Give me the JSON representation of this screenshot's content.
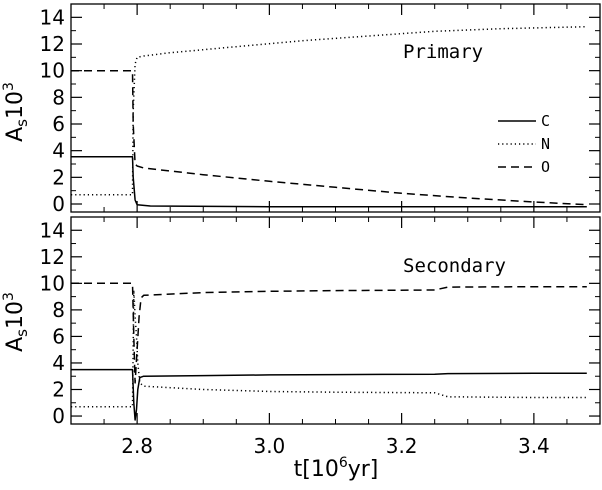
{
  "chart_data": [
    {
      "type": "line",
      "annotation": "Primary",
      "ylabel": "As10^3",
      "ylabel_main": "A",
      "ylabel_sub": "s",
      "ylabel_base": "10",
      "ylabel_sup": "3",
      "xlim": [
        2.7,
        3.5
      ],
      "ylim": [
        -0.6,
        15
      ],
      "yticks": [
        0,
        2,
        4,
        6,
        8,
        10,
        12,
        14
      ],
      "grid": false,
      "legend_position": "right-middle",
      "series": [
        {
          "name": "C",
          "style": "solid",
          "x": [
            2.7,
            2.793,
            2.794,
            2.797,
            2.8,
            2.82,
            3.0,
            3.3,
            3.48
          ],
          "y": [
            3.55,
            3.55,
            2.0,
            0.3,
            -0.05,
            -0.15,
            -0.2,
            -0.2,
            -0.2
          ]
        },
        {
          "name": "N",
          "style": "dotted",
          "x": [
            2.7,
            2.793,
            2.794,
            2.797,
            2.8,
            2.81,
            2.85,
            2.95,
            3.05,
            3.15,
            3.25,
            3.35,
            3.48
          ],
          "y": [
            0.7,
            0.7,
            7.0,
            10.5,
            11.0,
            11.1,
            11.35,
            11.8,
            12.25,
            12.6,
            12.95,
            13.15,
            13.3
          ]
        },
        {
          "name": "O",
          "style": "dashed",
          "x": [
            2.7,
            2.793,
            2.794,
            2.797,
            2.8,
            2.81,
            2.9,
            3.0,
            3.1,
            3.2,
            3.3,
            3.4,
            3.48
          ],
          "y": [
            10.0,
            10.0,
            6.0,
            3.0,
            2.85,
            2.7,
            2.2,
            1.7,
            1.25,
            0.8,
            0.45,
            0.15,
            -0.05
          ]
        }
      ]
    },
    {
      "type": "line",
      "annotation": "Secondary",
      "ylabel": "As10^3",
      "ylabel_main": "A",
      "ylabel_sub": "s",
      "ylabel_base": "10",
      "ylabel_sup": "3",
      "xlabel": "t[10^6yr]",
      "xlabel_pre": "t[10",
      "xlabel_sup": "6",
      "xlabel_post": "yr]",
      "xlim": [
        2.7,
        3.5
      ],
      "ylim": [
        -0.6,
        15
      ],
      "xticks": [
        2.8,
        3.0,
        3.2,
        3.4
      ],
      "xtick_labels": [
        "2.8",
        "3.0",
        "3.2",
        "3.4"
      ],
      "yticks": [
        0,
        2,
        4,
        6,
        8,
        10,
        12,
        14
      ],
      "grid": false,
      "series": [
        {
          "name": "C",
          "style": "solid",
          "x": [
            2.7,
            2.793,
            2.795,
            2.797,
            2.799,
            2.801,
            2.804,
            2.81,
            2.9,
            3.0,
            3.1,
            3.25,
            3.27,
            3.4,
            3.48
          ],
          "y": [
            3.5,
            3.5,
            1.0,
            -0.3,
            0.5,
            2.0,
            2.9,
            3.0,
            3.05,
            3.1,
            3.12,
            3.15,
            3.2,
            3.22,
            3.22
          ]
        },
        {
          "name": "N",
          "style": "dotted",
          "x": [
            2.7,
            2.793,
            2.795,
            2.797,
            2.799,
            2.801,
            2.804,
            2.81,
            2.9,
            3.0,
            3.1,
            3.25,
            3.27,
            3.4,
            3.48
          ],
          "y": [
            0.7,
            0.7,
            9.5,
            7.5,
            6.0,
            4.0,
            2.5,
            2.25,
            2.0,
            1.85,
            1.8,
            1.75,
            1.45,
            1.4,
            1.4
          ]
        },
        {
          "name": "O",
          "style": "dashed",
          "x": [
            2.7,
            2.793,
            2.795,
            2.797,
            2.8,
            2.803,
            2.806,
            2.81,
            2.9,
            3.0,
            3.1,
            3.25,
            3.27,
            3.4,
            3.48
          ],
          "y": [
            10.0,
            10.0,
            6.0,
            2.5,
            5.0,
            7.5,
            8.9,
            9.1,
            9.3,
            9.4,
            9.45,
            9.5,
            9.72,
            9.75,
            9.75
          ]
        }
      ]
    }
  ]
}
